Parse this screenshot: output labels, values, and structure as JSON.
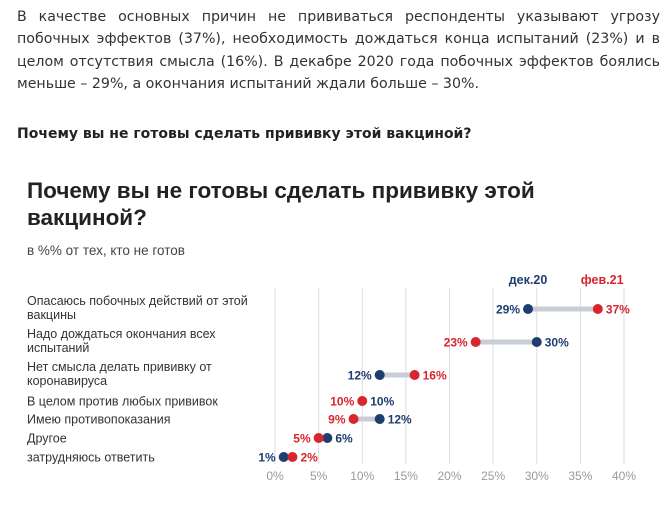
{
  "article": {
    "paragraph": "В качестве основных причин не прививаться респонденты указывают угрозу побочных эффектов (37%), необходимость дождаться конца испытаний (23%) и в целом отсутствия смысла (16%). В декабре 2020 года побочных эффектов боялись меньше – 29%, а окончания испытаний ждали больше – 30%.",
    "question": "Почему вы не готовы сделать прививку этой вакциной?"
  },
  "colors": {
    "dec": "#1f3d6e",
    "feb": "#d7262e",
    "connector": "#c9cdd6",
    "grid": "#dddddd"
  },
  "chart_data": {
    "type": "dumbbell",
    "title_lines": [
      "Почему вы не готовы сделать прививку этой",
      "вакциной?"
    ],
    "subtitle": "в %% от тех, кто не готов",
    "legend": [
      "дек.20",
      "фев.21"
    ],
    "series": [
      {
        "name": "дек.20"
      },
      {
        "name": "фев.21"
      }
    ],
    "xlim": [
      0,
      40
    ],
    "xticks": [
      "0%",
      "5%",
      "10%",
      "15%",
      "20%",
      "25%",
      "30%",
      "35%",
      "40%"
    ],
    "categories": [
      {
        "label": [
          "Опасаюсь побочных действий от этой",
          "вакцины"
        ],
        "dec": 29,
        "feb": 37,
        "dec_label": "29%",
        "feb_label": "37%"
      },
      {
        "label": [
          "Надо дождаться окончания всех",
          "испытаний"
        ],
        "dec": 30,
        "feb": 23,
        "dec_label": "30%",
        "feb_label": "23%"
      },
      {
        "label": [
          "Нет смысла делать прививку от",
          "коронавируса"
        ],
        "dec": 12,
        "feb": 16,
        "dec_label": "12%",
        "feb_label": "16%"
      },
      {
        "label": [
          "В целом против любых прививок"
        ],
        "dec": 10,
        "feb": 10,
        "dec_label": "10%",
        "feb_label": "10%"
      },
      {
        "label": [
          "Имею противопоказания"
        ],
        "dec": 12,
        "feb": 9,
        "dec_label": "12%",
        "feb_label": "9%"
      },
      {
        "label": [
          "Другое"
        ],
        "dec": 6,
        "feb": 5,
        "dec_label": "6%",
        "feb_label": "5%"
      },
      {
        "label": [
          "затрудняюсь ответить"
        ],
        "dec": 1,
        "feb": 2,
        "dec_label": "1%",
        "feb_label": "2%"
      }
    ]
  }
}
